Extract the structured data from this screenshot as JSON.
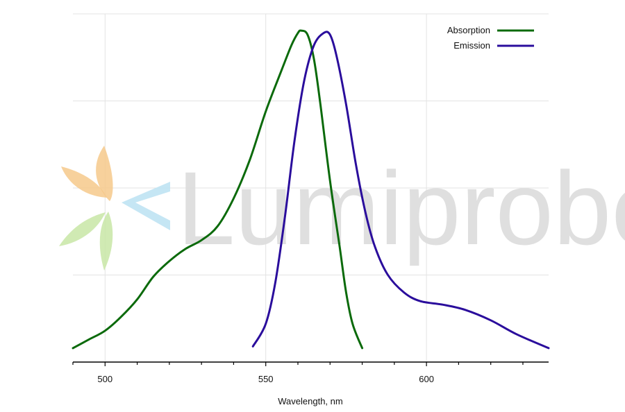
{
  "chart_data": {
    "type": "line",
    "title": "",
    "xlabel": "Wavelength, nm",
    "ylabel": "",
    "xlim": [
      490,
      638
    ],
    "ylim": [
      0,
      1.0
    ],
    "x_ticks": [
      500,
      550,
      600
    ],
    "x_minor_step": 10,
    "y_gridlines": [
      0.25,
      0.5,
      0.75,
      1.0
    ],
    "grid": true,
    "legend": "top-right",
    "series": [
      {
        "name": "Absorption",
        "color": "#0b6a0b",
        "points": [
          [
            490,
            0.04
          ],
          [
            495,
            0.065
          ],
          [
            500,
            0.09
          ],
          [
            505,
            0.13
          ],
          [
            510,
            0.18
          ],
          [
            515,
            0.245
          ],
          [
            520,
            0.29
          ],
          [
            525,
            0.325
          ],
          [
            530,
            0.35
          ],
          [
            535,
            0.39
          ],
          [
            540,
            0.47
          ],
          [
            545,
            0.58
          ],
          [
            550,
            0.72
          ],
          [
            555,
            0.84
          ],
          [
            558,
            0.91
          ],
          [
            560,
            0.945
          ],
          [
            561,
            0.952
          ],
          [
            563,
            0.94
          ],
          [
            565,
            0.87
          ],
          [
            567,
            0.74
          ],
          [
            570,
            0.52
          ],
          [
            573,
            0.33
          ],
          [
            575,
            0.2
          ],
          [
            577,
            0.11
          ],
          [
            580,
            0.04
          ]
        ]
      },
      {
        "name": "Emission",
        "color": "#2a0d9c",
        "points": [
          [
            546,
            0.045
          ],
          [
            550,
            0.11
          ],
          [
            553,
            0.23
          ],
          [
            556,
            0.42
          ],
          [
            559,
            0.64
          ],
          [
            562,
            0.81
          ],
          [
            565,
            0.91
          ],
          [
            568,
            0.945
          ],
          [
            570,
            0.94
          ],
          [
            572,
            0.88
          ],
          [
            575,
            0.74
          ],
          [
            578,
            0.57
          ],
          [
            581,
            0.43
          ],
          [
            584,
            0.33
          ],
          [
            588,
            0.25
          ],
          [
            593,
            0.2
          ],
          [
            598,
            0.175
          ],
          [
            605,
            0.165
          ],
          [
            612,
            0.15
          ],
          [
            620,
            0.12
          ],
          [
            628,
            0.08
          ],
          [
            638,
            0.04
          ]
        ]
      }
    ]
  },
  "watermark": {
    "text": "Lumiprobe",
    "colors": {
      "orange": "#f6c98b",
      "green": "#c8e6a6",
      "blue": "#bfe3f3",
      "grey": "#dedede"
    }
  }
}
